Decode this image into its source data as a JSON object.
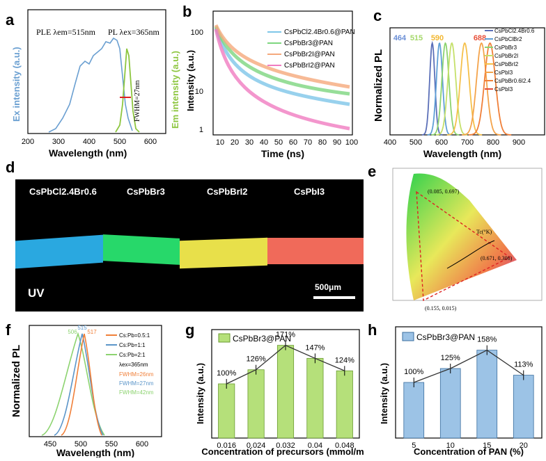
{
  "panels": {
    "a": {
      "letter": "a",
      "ylabel_left": "Ex intensity (a.u.)",
      "ylabel_right": "Em intensity (a.u.)",
      "xlabel": "Wavelength (nm)",
      "xticks": [
        "200",
        "300",
        "400",
        "500",
        "600"
      ],
      "ple_label": "PLE  λem=515nm",
      "pl_label": "PL  λex=365nm",
      "fwhm": "FWHM=27nm",
      "colors": {
        "ple": "#6a9fd1",
        "pl": "#8dc63f",
        "left": "#6a9fd1",
        "right": "#8dc63f"
      }
    },
    "b": {
      "letter": "b",
      "ylabel": "Intensity (a.u.)",
      "xlabel": "Time (ns)",
      "xticks": [
        "10",
        "20",
        "30",
        "40",
        "50",
        "60",
        "70",
        "80",
        "90",
        "100"
      ],
      "yticks": [
        "1",
        "10",
        "100"
      ],
      "legend": [
        "CsPbCl2.4Br0.6@PAN",
        "CsPbBr3@PAN",
        "CsPbBr2I@PAN",
        "CsPbBrI2@PAN"
      ],
      "colors": [
        "#7ec6e8",
        "#7dd67f",
        "#f5a97c",
        "#f07cc0"
      ]
    },
    "c": {
      "letter": "c",
      "ylabel": "Normalized PL",
      "xlabel": "Wavelength (nm)",
      "xticks": [
        "400",
        "500",
        "600",
        "700",
        "800",
        "900"
      ],
      "peak_labels": [
        "464",
        "515",
        "590",
        "688"
      ],
      "peak_colors": [
        "#6b8fd6",
        "#a6d86b",
        "#f2b731",
        "#e8503a"
      ],
      "legend": [
        "CsPbCl2.4Br0.6",
        "CsPbClBr2",
        "CsPbBr3",
        "CsPbBr2I",
        "CsPbBrI2",
        "CsPbI3",
        "CsPbBr0.6I2.4",
        "CsPbI3"
      ],
      "colors": [
        "#5b6fb8",
        "#5f9fd6",
        "#8cd36f",
        "#c5e06a",
        "#f5c04a",
        "#f4a34a",
        "#f07f38",
        "#e34a36"
      ]
    },
    "d": {
      "letter": "d",
      "labels": [
        "CsPbCl2.4Br0.6",
        "CsPbBr3",
        "CsPbBrI2",
        "CsPbI3"
      ],
      "uv": "UV",
      "scale": "500μm",
      "fiber_colors": [
        "#2aa8e0",
        "#27d86a",
        "#e8e04a",
        "#f06a5a"
      ]
    },
    "e": {
      "letter": "e",
      "points": [
        "(0.085, 0.697)",
        "(0.671, 0.306)",
        "(0.155, 0.015)"
      ],
      "tc": "Tc(°K)"
    },
    "f": {
      "letter": "f",
      "ylabel": "Normalized PL",
      "xlabel": "Wavelength (nm)",
      "xticks": [
        "450",
        "500",
        "550",
        "600"
      ],
      "legend": [
        "Cs:Pb=0.5:1",
        "Cs:Pb=1:1",
        "Cs:Pb=2:1"
      ],
      "colors": [
        "#f07f38",
        "#5b95c9",
        "#8cd36f"
      ],
      "lambda": "λex=365nm",
      "fwhm": [
        "FWHM=26nm",
        "FWHM=27nm",
        "FWHM=42nm"
      ],
      "peaks": [
        "506",
        "515",
        "517"
      ]
    },
    "g": {
      "letter": "g",
      "legend": "CsPbBr3@PAN",
      "ylabel": "Intensity (a.u.)",
      "xlabel": "Concentration of precursors (mmol/ml)",
      "bar_color": "#b5e07a"
    },
    "h": {
      "letter": "h",
      "legend": "CsPbBr3@PAN",
      "ylabel": "Intensity (a.u.)",
      "xlabel": "Concentration of PAN (%)",
      "bar_color": "#9cc3e6"
    }
  },
  "chart_data": [
    {
      "id": "g",
      "type": "bar",
      "categories": [
        "0.016",
        "0.024",
        "0.032",
        "0.04",
        "0.048"
      ],
      "values": [
        100,
        126,
        171,
        147,
        124
      ],
      "labels": [
        "100%",
        "126%",
        "171%",
        "147%",
        "124%"
      ],
      "xlabel": "Concentration of precursors (mmol/ml)",
      "ylabel": "Intensity (a.u.)",
      "ylim": [
        0,
        200
      ]
    },
    {
      "id": "h",
      "type": "bar",
      "categories": [
        "5",
        "10",
        "15",
        "20"
      ],
      "values": [
        100,
        125,
        158,
        113
      ],
      "labels": [
        "100%",
        "125%",
        "158%",
        "113%"
      ],
      "xlabel": "Concentration of PAN (%)",
      "ylabel": "Intensity (a.u.)",
      "ylim": [
        0,
        200
      ]
    },
    {
      "id": "c",
      "type": "line",
      "peaks_nm": [
        464,
        492,
        515,
        540,
        590,
        655,
        688
      ],
      "x_range": [
        300,
        900
      ],
      "xlabel": "Wavelength (nm)",
      "ylabel": "Normalized PL"
    }
  ]
}
